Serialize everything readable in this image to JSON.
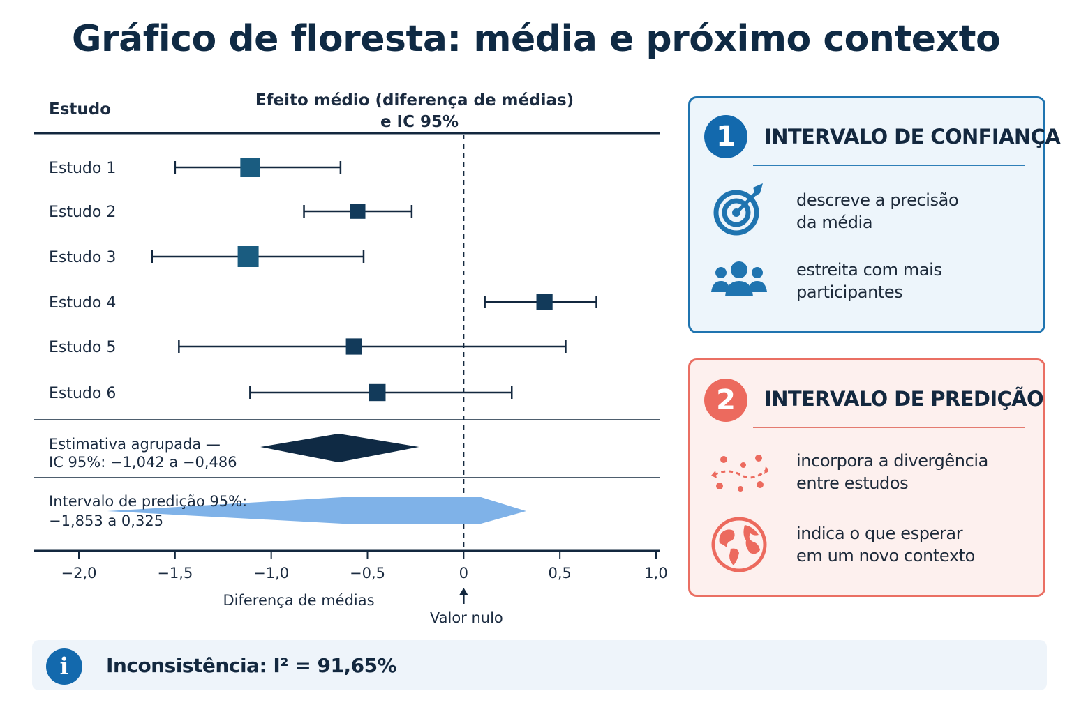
{
  "title": "Gráfico de floresta: média e próximo contexto",
  "chart_data": {
    "type": "forest",
    "column_header_left": "Estudo",
    "column_header_center_line1": "Efeito médio (diferença de médias)",
    "column_header_center_line2": "e IC 95%",
    "xlabel": "Diferença de médias",
    "xlim": [
      -2.0,
      1.0
    ],
    "ticks": [
      -2.0,
      -1.5,
      -1.0,
      -0.5,
      0,
      0.5,
      1.0
    ],
    "tick_labels": [
      "−2,0",
      "−1,5",
      "−1,0",
      "−0,5",
      "0",
      "0,5",
      "1,0"
    ],
    "null_value": 0,
    "null_label": "Valor nulo",
    "studies": [
      {
        "label": "Estudo 1",
        "estimate": -1.11,
        "lower": -1.5,
        "upper": -0.64,
        "weight": 1.0
      },
      {
        "label": "Estudo 2",
        "estimate": -0.55,
        "lower": -0.83,
        "upper": -0.27,
        "weight": 0.68
      },
      {
        "label": "Estudo 3",
        "estimate": -1.12,
        "lower": -1.62,
        "upper": -0.52,
        "weight": 1.1
      },
      {
        "label": "Estudo 4",
        "estimate": 0.42,
        "lower": 0.11,
        "upper": 0.69,
        "weight": 0.76
      },
      {
        "label": "Estudo 5",
        "estimate": -0.57,
        "lower": -1.48,
        "upper": 0.53,
        "weight": 0.76
      },
      {
        "label": "Estudo 6",
        "estimate": -0.45,
        "lower": -1.11,
        "upper": 0.25,
        "weight": 0.82
      }
    ],
    "pooled": {
      "label_line1": "Estimativa agrupada —",
      "label_line2": "IC 95%:  −1,042 a −0,486",
      "estimate": -0.65,
      "lower": -1.042,
      "upper": -0.486
    },
    "prediction": {
      "label_line1": "Intervalo de predição 95%:",
      "label_line2": "−1,853 a 0,325",
      "lower": -1.853,
      "upper": 0.325
    },
    "colors": {
      "axis": "#13283f",
      "whisker": "#13283f",
      "square_dark": "#123a5a",
      "square_teal": "#1a5c80",
      "pooled": "#0f2a44",
      "prediction": "#7fb2e8",
      "null_line": "#13283f"
    }
  },
  "card_ci": {
    "number": "1",
    "title": "INTERVALO DE CONFIANÇA",
    "items": [
      {
        "icon": "target-icon",
        "text_line1": "descreve a precisão",
        "text_line2": "da média"
      },
      {
        "icon": "people-icon",
        "text_line1": "estreita com mais",
        "text_line2": "participantes"
      }
    ],
    "accent": "#1369ad"
  },
  "card_pi": {
    "number": "2",
    "title": "INTERVALO DE PREDIÇÃO",
    "items": [
      {
        "icon": "scatter-dots-icon",
        "text_line1": "incorpora a divergência",
        "text_line2": "entre estudos"
      },
      {
        "icon": "globe-icon",
        "text_line1": "indica o que esperar",
        "text_line2": "em um novo contexto"
      }
    ],
    "accent": "#ec6a5e"
  },
  "info": {
    "icon": "info-icon",
    "text": "Inconsistência: I² = 91,65%"
  }
}
